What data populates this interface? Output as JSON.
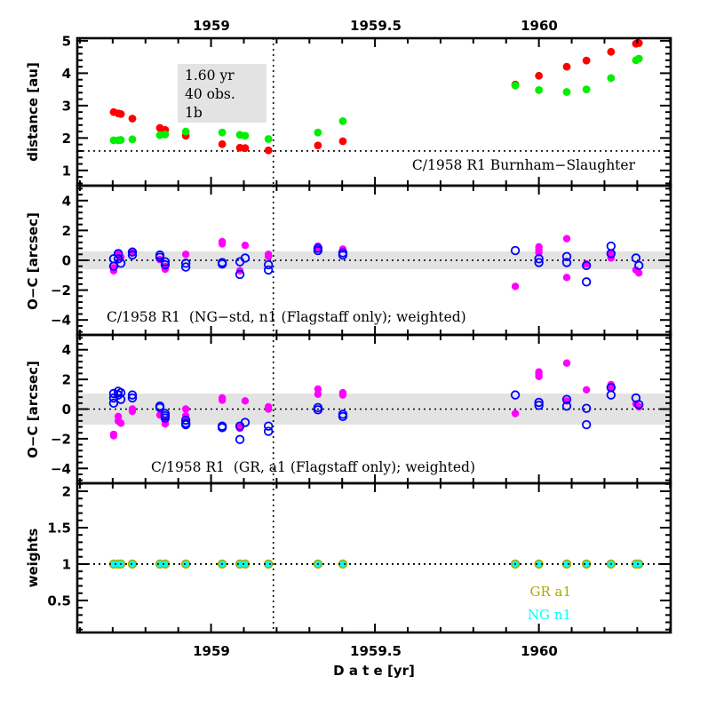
{
  "chart_data": [
    {
      "type": "scatter",
      "panel": "distance",
      "title": "C/1958 R1 Burnham-Slaughter",
      "xlabel": "",
      "ylabel": "distance [au]",
      "xlim": [
        1958.592,
        1960.402
      ],
      "ylim": [
        0.53,
        5.08
      ],
      "yticks": [
        1,
        2,
        3,
        4,
        5
      ],
      "ytick_labels": [
        "1",
        "2",
        "3",
        "4",
        "5"
      ],
      "top_xticks": [
        1959,
        1959.5,
        1960
      ],
      "top_xtick_labels": [
        "1959",
        "1959.5",
        "1960"
      ],
      "hline": 1.6,
      "vline": 1959.19,
      "stats_box": [
        "1.60 yr",
        "40 obs.",
        "1b"
      ],
      "series": [
        {
          "name": "heliocentric distance",
          "color": "#ff0000",
          "x": [
            1958.703,
            1958.717,
            1958.725,
            1958.76,
            1958.844,
            1958.86,
            1958.923,
            1959.034,
            1959.088,
            1959.104,
            1959.175,
            1959.326,
            1959.402,
            1959.928,
            1960.0,
            1960.085,
            1960.145,
            1960.22,
            1960.296,
            1960.305
          ],
          "y": [
            2.8,
            2.76,
            2.74,
            2.6,
            2.31,
            2.25,
            2.07,
            1.81,
            1.7,
            1.69,
            1.62,
            1.77,
            1.9,
            3.65,
            3.92,
            4.2,
            4.39,
            4.66,
            4.91,
            4.93
          ]
        },
        {
          "name": "geocentric distance",
          "color": "#00ee00",
          "x": [
            1958.703,
            1958.717,
            1958.725,
            1958.76,
            1958.844,
            1958.86,
            1958.923,
            1959.034,
            1959.088,
            1959.104,
            1959.175,
            1959.326,
            1959.402,
            1959.928,
            1960.0,
            1960.085,
            1960.145,
            1960.22,
            1960.296,
            1960.305
          ],
          "y": [
            1.93,
            1.93,
            1.94,
            1.96,
            2.09,
            2.11,
            2.2,
            2.17,
            2.1,
            2.07,
            1.97,
            2.17,
            2.52,
            3.62,
            3.48,
            3.42,
            3.5,
            3.85,
            4.4,
            4.45
          ]
        }
      ]
    },
    {
      "type": "scatter",
      "panel": "residuals-ng",
      "title": "C/1958 R1  (NG-std, n1 (Flagstaff only); weighted)",
      "ylabel": "O-C [arcsec]",
      "xlim": [
        1958.592,
        1960.402
      ],
      "ylim": [
        -5,
        5
      ],
      "yticks": [
        -4,
        -2,
        0,
        2,
        4
      ],
      "ytick_labels": [
        "−4",
        "−2",
        "0",
        "2",
        "4"
      ],
      "band": [
        -0.6,
        0.6
      ],
      "hline": 0,
      "vline": 1959.19,
      "series": [
        {
          "name": "RA residuals",
          "marker": "filled",
          "color": "#ff00ff",
          "x": [
            1958.703,
            1958.703,
            1958.717,
            1958.717,
            1958.725,
            1958.76,
            1958.844,
            1958.86,
            1958.86,
            1958.923,
            1959.034,
            1959.034,
            1959.088,
            1959.104,
            1959.175,
            1959.175,
            1959.326,
            1959.326,
            1959.402,
            1959.928,
            1960.0,
            1960.0,
            1960.0,
            1960.085,
            1960.085,
            1960.145,
            1960.22,
            1960.22,
            1960.296,
            1960.305
          ],
          "y": [
            -0.5,
            -0.7,
            0.45,
            0.35,
            0.2,
            0.6,
            0.05,
            -0.4,
            -0.6,
            0.4,
            1.25,
            1.1,
            -0.7,
            1.0,
            0.4,
            0.25,
            0.95,
            0.8,
            0.75,
            -1.75,
            0.9,
            0.7,
            0.5,
            1.45,
            -1.15,
            -0.25,
            0.45,
            0.15,
            -0.65,
            -0.85
          ]
        },
        {
          "name": "Dec residuals",
          "marker": "open",
          "color": "#0000ff",
          "x": [
            1958.703,
            1958.703,
            1958.717,
            1958.717,
            1958.725,
            1958.76,
            1958.76,
            1958.844,
            1958.844,
            1958.86,
            1958.86,
            1958.923,
            1958.923,
            1959.034,
            1959.034,
            1959.088,
            1959.088,
            1959.104,
            1959.175,
            1959.175,
            1959.326,
            1959.326,
            1959.402,
            1959.402,
            1959.928,
            1960.0,
            1960.0,
            1960.085,
            1960.085,
            1960.145,
            1960.145,
            1960.22,
            1960.22,
            1960.296,
            1960.305
          ],
          "y": [
            0.1,
            -0.4,
            0.45,
            0.1,
            -0.2,
            0.55,
            0.35,
            0.35,
            0.2,
            -0.1,
            -0.3,
            -0.2,
            -0.45,
            -0.15,
            -0.25,
            -0.1,
            -0.95,
            0.15,
            -0.3,
            -0.65,
            0.8,
            0.65,
            0.5,
            0.35,
            0.65,
            0.1,
            -0.15,
            0.25,
            -0.15,
            -0.35,
            -1.45,
            0.95,
            0.45,
            0.15,
            -0.35
          ]
        }
      ]
    },
    {
      "type": "scatter",
      "panel": "residuals-gr",
      "title": "C/1958 R1  (GR, a1 (Flagstaff only); weighted)",
      "ylabel": "O-C [arcsec]",
      "xlim": [
        1958.592,
        1960.402
      ],
      "ylim": [
        -5,
        5
      ],
      "yticks": [
        -4,
        -2,
        0,
        2,
        4
      ],
      "ytick_labels": [
        "−4",
        "−2",
        "0",
        "2",
        "4"
      ],
      "band": [
        -1.05,
        1.05
      ],
      "hline": 0,
      "vline": 1959.19,
      "series": [
        {
          "name": "RA residuals",
          "marker": "filled",
          "color": "#ff00ff",
          "x": [
            1958.703,
            1958.703,
            1958.717,
            1958.717,
            1958.725,
            1958.76,
            1958.76,
            1958.844,
            1958.86,
            1958.86,
            1958.923,
            1958.923,
            1959.034,
            1959.034,
            1959.088,
            1959.088,
            1959.104,
            1959.175,
            1959.175,
            1959.326,
            1959.326,
            1959.402,
            1959.402,
            1959.928,
            1960.0,
            1960.0,
            1960.0,
            1960.085,
            1960.085,
            1960.145,
            1960.22,
            1960.22,
            1960.296,
            1960.305
          ],
          "y": [
            -1.7,
            -1.8,
            -0.5,
            -0.8,
            -0.95,
            0.0,
            -0.15,
            -0.4,
            -0.8,
            -1.0,
            0.0,
            -0.45,
            0.75,
            0.6,
            -1.2,
            -1.3,
            0.55,
            0.15,
            0.0,
            1.35,
            1.0,
            1.1,
            0.95,
            -0.3,
            2.5,
            2.35,
            2.2,
            3.1,
            0.55,
            1.3,
            1.65,
            1.45,
            0.35,
            0.15
          ]
        },
        {
          "name": "Dec residuals",
          "marker": "open",
          "color": "#0000ff",
          "x": [
            1958.703,
            1958.703,
            1958.703,
            1958.717,
            1958.717,
            1958.725,
            1958.725,
            1958.76,
            1958.76,
            1958.844,
            1958.844,
            1958.86,
            1958.86,
            1958.86,
            1958.923,
            1958.923,
            1958.923,
            1959.034,
            1959.034,
            1959.088,
            1959.088,
            1959.104,
            1959.175,
            1959.175,
            1959.326,
            1959.326,
            1959.402,
            1959.402,
            1959.928,
            1960.0,
            1960.0,
            1960.085,
            1960.085,
            1960.145,
            1960.145,
            1960.22,
            1960.22,
            1960.296,
            1960.305
          ],
          "y": [
            1.05,
            0.75,
            0.4,
            1.2,
            0.95,
            1.1,
            0.65,
            0.95,
            0.75,
            0.2,
            0.1,
            -0.3,
            -0.45,
            -0.6,
            -0.75,
            -0.95,
            -1.05,
            -1.15,
            -1.25,
            -1.15,
            -2.05,
            -0.9,
            -1.15,
            -1.5,
            0.1,
            -0.05,
            -0.35,
            -0.5,
            0.95,
            0.45,
            0.25,
            0.65,
            0.2,
            0.05,
            -1.05,
            1.45,
            0.95,
            0.75,
            0.3
          ]
        }
      ]
    },
    {
      "type": "scatter",
      "panel": "weights",
      "title": "",
      "xlabel": "D a t e [yr]",
      "ylabel": "weights",
      "xlim": [
        1958.592,
        1960.402
      ],
      "ylim": [
        0.06,
        2.11
      ],
      "yticks": [
        0.5,
        1,
        1.5,
        2
      ],
      "ytick_labels": [
        "0.5",
        "1",
        "1.5",
        "2"
      ],
      "xticks": [
        1959,
        1959.5,
        1960
      ],
      "xtick_labels": [
        "1959",
        "1959.5",
        "1960"
      ],
      "hline": 1,
      "vline": 1959.19,
      "legend": [
        {
          "label": "GR a1",
          "color": "#aaaa00"
        },
        {
          "label": "NG n1",
          "color": "#00ffff"
        }
      ],
      "legend_position": "bottom-right",
      "series": [
        {
          "name": "GR a1",
          "color": "#aaaa00",
          "x": [
            1958.703,
            1958.717,
            1958.725,
            1958.76,
            1958.844,
            1958.86,
            1958.923,
            1959.034,
            1959.088,
            1959.104,
            1959.175,
            1959.326,
            1959.402,
            1959.928,
            1960.0,
            1960.085,
            1960.145,
            1960.22,
            1960.296,
            1960.305
          ],
          "y": [
            1,
            1,
            1,
            1,
            1,
            1,
            1,
            1,
            1,
            1,
            1,
            1,
            1,
            1,
            1,
            1,
            1,
            1,
            1,
            1
          ]
        },
        {
          "name": "NG n1",
          "color": "#00ffff",
          "x": [
            1958.703,
            1958.717,
            1958.725,
            1958.76,
            1958.844,
            1958.86,
            1958.923,
            1959.034,
            1959.088,
            1959.104,
            1959.175,
            1959.326,
            1959.402,
            1959.928,
            1960.0,
            1960.085,
            1960.145,
            1960.22,
            1960.296,
            1960.305
          ],
          "y": [
            1,
            1,
            1,
            1,
            1,
            1,
            1,
            1,
            1,
            1,
            1,
            1,
            1,
            1,
            1,
            1,
            1,
            1,
            1,
            1
          ]
        }
      ]
    }
  ],
  "labels": {
    "distance_title": "C/1958 R1 Burnham−Slaughter",
    "ng_title": "C/1958 R1  (NG−std, n1 (Flagstaff only); weighted)",
    "gr_title": "C/1958 R1  (GR, a1 (Flagstaff only); weighted)",
    "ylabel_distance": "distance [au]",
    "ylabel_oc": "O−C [arcsec]",
    "ylabel_weights": "weights",
    "xlabel": "D a t e [yr]",
    "stats": [
      "1.60 yr",
      "40 obs.",
      "1b"
    ],
    "legend_gr": "GR a1",
    "legend_ng": "NG n1",
    "top_ticks": [
      "1959",
      "1959.5",
      "1960"
    ],
    "bottom_ticks": [
      "1959",
      "1959.5",
      "1960"
    ]
  }
}
